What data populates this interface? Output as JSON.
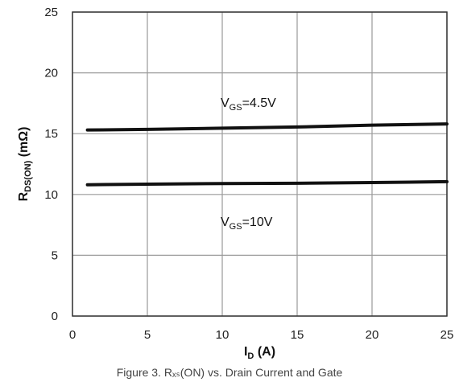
{
  "chart_data": {
    "type": "line",
    "xlabel": {
      "main": "I",
      "sub": "D",
      "unit": " (A)"
    },
    "ylabel": {
      "main": "R",
      "sub": "DS(ON)",
      "unit": " (mΩ)"
    },
    "xlim": [
      0,
      25
    ],
    "ylim": [
      0,
      25
    ],
    "xticks": [
      "0",
      "5",
      "10",
      "15",
      "20",
      "25"
    ],
    "yticks": [
      "0",
      "5",
      "10",
      "15",
      "20",
      "25"
    ],
    "grid": true,
    "series": [
      {
        "name": "VGS=4.5V",
        "x": [
          1,
          5,
          10,
          15,
          20,
          25
        ],
        "y": [
          15.3,
          15.35,
          15.45,
          15.55,
          15.7,
          15.8
        ]
      },
      {
        "name": "VGS=10V",
        "x": [
          1,
          5,
          10,
          15,
          20,
          25
        ],
        "y": [
          10.8,
          10.85,
          10.9,
          10.92,
          10.98,
          11.05
        ]
      }
    ],
    "annotations": [
      {
        "main": "V",
        "sub": "GS",
        "rest": "=4.5V"
      },
      {
        "main": "V",
        "sub": "GS",
        "rest": "=10V"
      }
    ],
    "line_color": "#111111",
    "grid_color": "#9a9a9a"
  },
  "caption": "Figure 3. Rₓₛ(ON) vs. Drain Current and Gate"
}
